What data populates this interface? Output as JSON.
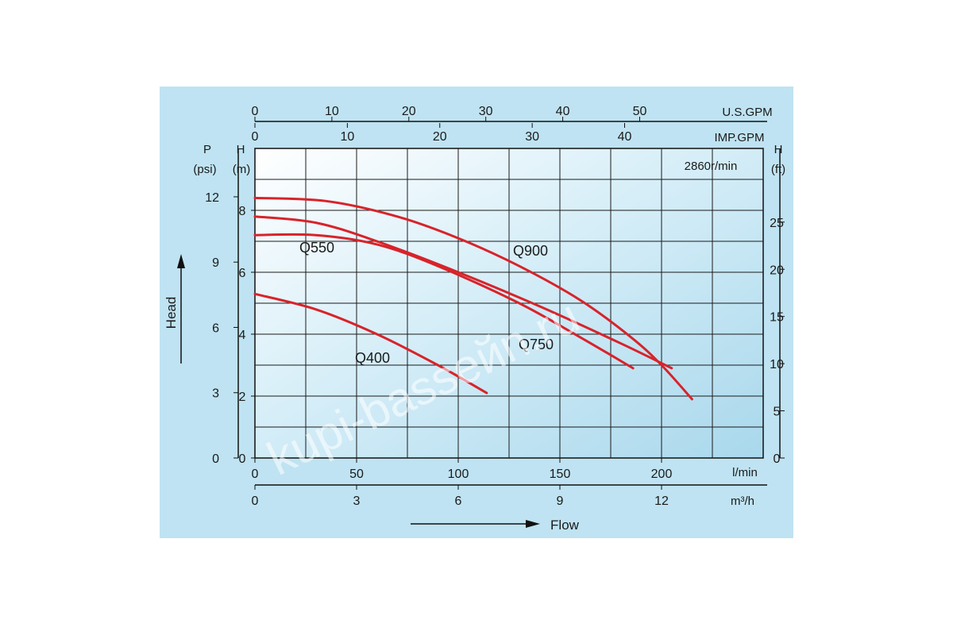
{
  "chart_data": {
    "type": "line",
    "annotation": "2860r/min",
    "xlabel": "Flow",
    "ylabel": "Head",
    "x_unit": "l/min",
    "xlim": [
      0,
      250
    ],
    "ylim": [
      0,
      10
    ],
    "grid": true,
    "x_ticks": [
      0,
      50,
      100,
      150,
      200
    ],
    "y_ticks": [
      0,
      2,
      4,
      6,
      8
    ],
    "secondary_axes": {
      "m3h": {
        "unit": "m³/h",
        "ticks": [
          "0",
          "3",
          "6",
          "9",
          "12"
        ]
      },
      "us_gpm": {
        "unit": "U.S.GPM",
        "ticks": [
          "0",
          "10",
          "20",
          "30",
          "40",
          "50"
        ]
      },
      "imp_gpm": {
        "unit": "IMP.GPM",
        "ticks": [
          "0",
          "10",
          "20",
          "30",
          "40"
        ]
      },
      "psi": {
        "unit_line1": "P",
        "unit_line2": "(psi)",
        "ticks": [
          "0",
          "3",
          "6",
          "9",
          "12"
        ]
      },
      "m": {
        "unit_line1": "H",
        "unit_line2": "(m)"
      },
      "ft": {
        "unit_line1": "H",
        "unit_line2": "(ft)",
        "ticks": [
          "0",
          "5",
          "10",
          "15",
          "20",
          "25"
        ]
      }
    },
    "series": [
      {
        "name": "Q900",
        "x": [
          0,
          35,
          70,
          100,
          130,
          160,
          185,
          200,
          215
        ],
        "y": [
          8.4,
          8.3,
          7.8,
          7.1,
          6.2,
          5.1,
          3.9,
          3.0,
          1.9
        ]
      },
      {
        "name": "Q750",
        "x": [
          0,
          30,
          60,
          100,
          140,
          180,
          205
        ],
        "y": [
          7.8,
          7.6,
          7.0,
          6.0,
          4.9,
          3.7,
          2.9
        ]
      },
      {
        "name": "Q550",
        "x": [
          0,
          30,
          60,
          90,
          130,
          160,
          186
        ],
        "y": [
          7.2,
          7.2,
          6.9,
          6.2,
          5.0,
          3.9,
          2.9
        ]
      },
      {
        "name": "Q400",
        "x": [
          0,
          30,
          60,
          90,
          114
        ],
        "y": [
          5.3,
          4.8,
          4.0,
          3.0,
          2.1
        ]
      }
    ]
  },
  "watermark": "kupi-basseйn.ru"
}
